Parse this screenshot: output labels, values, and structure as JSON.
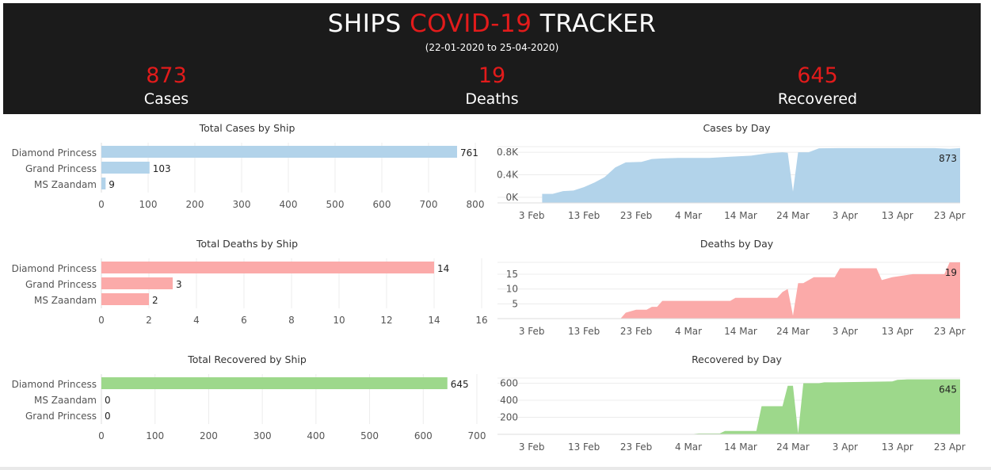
{
  "header": {
    "title_pre": "SHIPS ",
    "title_accent": "COVID-19",
    "title_post": " TRACKER",
    "subtitle": "(22-01-2020 to 25-04-2020)",
    "kpis": [
      {
        "value": "873",
        "label": "Cases"
      },
      {
        "value": "19",
        "label": "Deaths"
      },
      {
        "value": "645",
        "label": "Recovered"
      }
    ]
  },
  "colors": {
    "accent": "#e21b1b",
    "header_bg": "#1b1b1b",
    "cases": "#b2d3ea",
    "deaths": "#fbaaa9",
    "recovered": "#9dd88b"
  },
  "chart_data": [
    {
      "id": "cases-ship",
      "type": "bar",
      "title": "Total Cases by Ship",
      "color": "#b2d3ea",
      "categories": [
        "Diamond Princess",
        "Grand Princess",
        "MS Zaandam"
      ],
      "values": [
        761,
        103,
        9
      ],
      "xlim": [
        0,
        800
      ],
      "ticks": [
        "0",
        "100",
        "200",
        "300",
        "400",
        "500",
        "600",
        "700",
        "800"
      ],
      "tickvals": [
        0,
        100,
        200,
        300,
        400,
        500,
        600,
        700,
        800
      ]
    },
    {
      "id": "deaths-ship",
      "type": "bar",
      "title": "Total Deaths by Ship",
      "color": "#fbaaa9",
      "categories": [
        "Diamond Princess",
        "Grand Princess",
        "MS Zaandam"
      ],
      "values": [
        14,
        3,
        2
      ],
      "xlim": [
        0,
        16
      ],
      "ticks": [
        "0",
        "2",
        "4",
        "6",
        "8",
        "10",
        "12",
        "14",
        "16"
      ],
      "tickvals": [
        0,
        2,
        4,
        6,
        8,
        10,
        12,
        14,
        16
      ]
    },
    {
      "id": "recovered-ship",
      "type": "bar",
      "title": "Total Recovered by Ship",
      "color": "#9dd88b",
      "categories": [
        "Diamond Princess",
        "MS Zaandam",
        "Grand Princess"
      ],
      "values": [
        645,
        0,
        0
      ],
      "xlim": [
        0,
        700
      ],
      "ticks": [
        "0",
        "100",
        "200",
        "300",
        "400",
        "500",
        "600",
        "700"
      ],
      "tickvals": [
        0,
        100,
        200,
        300,
        400,
        500,
        600,
        700
      ]
    },
    {
      "id": "cases-day",
      "type": "area",
      "title": "Cases by Day",
      "color": "#b2d3ea",
      "x": [
        "2020-02-05",
        "2020-02-07",
        "2020-02-09",
        "2020-02-11",
        "2020-02-13",
        "2020-02-15",
        "2020-02-17",
        "2020-02-19",
        "2020-02-21",
        "2020-02-24",
        "2020-02-26",
        "2020-02-28",
        "2020-03-02",
        "2020-03-05",
        "2020-03-08",
        "2020-03-12",
        "2020-03-16",
        "2020-03-19",
        "2020-03-22",
        "2020-03-23",
        "2020-03-24",
        "2020-03-25",
        "2020-03-27",
        "2020-03-29",
        "2020-04-02",
        "2020-04-08",
        "2020-04-14",
        "2020-04-20",
        "2020-04-23",
        "2020-04-25"
      ],
      "y": [
        60,
        60,
        110,
        120,
        180,
        260,
        360,
        530,
        620,
        630,
        680,
        690,
        700,
        700,
        700,
        720,
        740,
        780,
        800,
        790,
        100,
        800,
        800,
        870,
        873,
        873,
        873,
        873,
        860,
        873
      ],
      "ylim": [
        -100,
        900
      ],
      "yticks": [
        "0K",
        "0.4K",
        "0.8K"
      ],
      "ytickvals": [
        0,
        400,
        800
      ],
      "xticks": [
        "3 Feb",
        "13 Feb",
        "23 Feb",
        "4 Mar",
        "14 Mar",
        "24 Mar",
        "3 Apr",
        "13 Apr",
        "23 Apr"
      ],
      "xtickvals": [
        "2020-02-03",
        "2020-02-13",
        "2020-02-23",
        "2020-03-04",
        "2020-03-14",
        "2020-03-24",
        "2020-04-03",
        "2020-04-13",
        "2020-04-23"
      ],
      "end_label": "873"
    },
    {
      "id": "deaths-day",
      "type": "area",
      "title": "Deaths by Day",
      "color": "#fbaaa9",
      "x": [
        "2020-02-05",
        "2020-02-20",
        "2020-02-21",
        "2020-02-23",
        "2020-02-25",
        "2020-02-26",
        "2020-02-27",
        "2020-02-28",
        "2020-03-01",
        "2020-03-04",
        "2020-03-08",
        "2020-03-12",
        "2020-03-13",
        "2020-03-17",
        "2020-03-20",
        "2020-03-21",
        "2020-03-22",
        "2020-03-23",
        "2020-03-24",
        "2020-03-25",
        "2020-03-26",
        "2020-03-28",
        "2020-03-29",
        "2020-04-01",
        "2020-04-02",
        "2020-04-09",
        "2020-04-10",
        "2020-04-12",
        "2020-04-16",
        "2020-04-22",
        "2020-04-23",
        "2020-04-25"
      ],
      "y": [
        0,
        0,
        2,
        3,
        3,
        4,
        4,
        6,
        6,
        6,
        6,
        6,
        7,
        7,
        7,
        7,
        9,
        10,
        1,
        12,
        12,
        14,
        14,
        14,
        17,
        17,
        13,
        14,
        15,
        15,
        19,
        19
      ],
      "ylim": [
        0,
        19
      ],
      "yticks": [
        "5",
        "10",
        "15"
      ],
      "ytickvals": [
        5,
        10,
        15
      ],
      "xticks": [
        "3 Feb",
        "13 Feb",
        "23 Feb",
        "4 Mar",
        "14 Mar",
        "24 Mar",
        "3 Apr",
        "13 Apr",
        "23 Apr"
      ],
      "xtickvals": [
        "2020-02-03",
        "2020-02-13",
        "2020-02-23",
        "2020-03-04",
        "2020-03-14",
        "2020-03-24",
        "2020-04-03",
        "2020-04-13",
        "2020-04-23"
      ],
      "end_label": "19"
    },
    {
      "id": "recovered-day",
      "type": "area",
      "title": "Recovered by Day",
      "color": "#9dd88b",
      "x": [
        "2020-02-04",
        "2020-02-24",
        "2020-02-25",
        "2020-03-05",
        "2020-03-06",
        "2020-03-10",
        "2020-03-11",
        "2020-03-17",
        "2020-03-18",
        "2020-03-22",
        "2020-03-23",
        "2020-03-24",
        "2020-03-25",
        "2020-03-26",
        "2020-03-29",
        "2020-03-30",
        "2020-04-01",
        "2020-04-12",
        "2020-04-13",
        "2020-04-15",
        "2020-04-18",
        "2020-04-25"
      ],
      "y": [
        0,
        0,
        5,
        5,
        10,
        10,
        40,
        40,
        330,
        330,
        570,
        570,
        10,
        600,
        600,
        610,
        610,
        620,
        640,
        645,
        645,
        645
      ],
      "ylim": [
        0,
        660
      ],
      "yticks": [
        "200",
        "400",
        "600"
      ],
      "ytickvals": [
        200,
        400,
        600
      ],
      "xticks": [
        "3 Feb",
        "13 Feb",
        "23 Feb",
        "4 Mar",
        "14 Mar",
        "24 Mar",
        "3 Apr",
        "13 Apr",
        "23 Apr"
      ],
      "xtickvals": [
        "2020-02-03",
        "2020-02-13",
        "2020-02-23",
        "2020-03-04",
        "2020-03-14",
        "2020-03-24",
        "2020-04-03",
        "2020-04-13",
        "2020-04-23"
      ],
      "end_label": "645"
    }
  ]
}
